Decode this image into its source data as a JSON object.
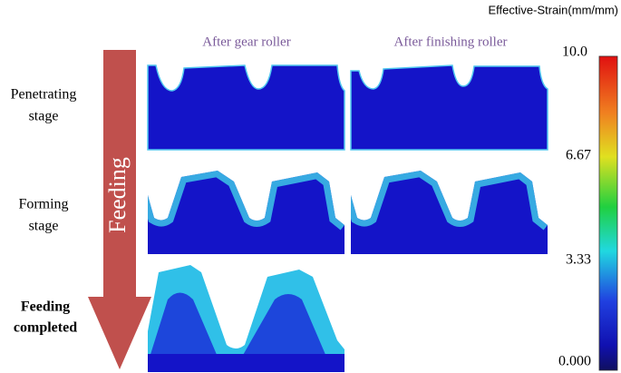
{
  "columns": [
    "After gear roller",
    "After finishing roller"
  ],
  "rows": [
    {
      "label_lines": [
        "Penetrating",
        "stage"
      ]
    },
    {
      "label_lines": [
        "Forming",
        "stage"
      ]
    },
    {
      "label_lines": [
        "Feeding",
        "completed"
      ]
    }
  ],
  "arrow_label": "Feeding",
  "colorbar": {
    "title": "Effective-Strain(mm/mm)",
    "ticks": [
      "10.0",
      "6.67",
      "3.33",
      "0.000"
    ]
  }
}
